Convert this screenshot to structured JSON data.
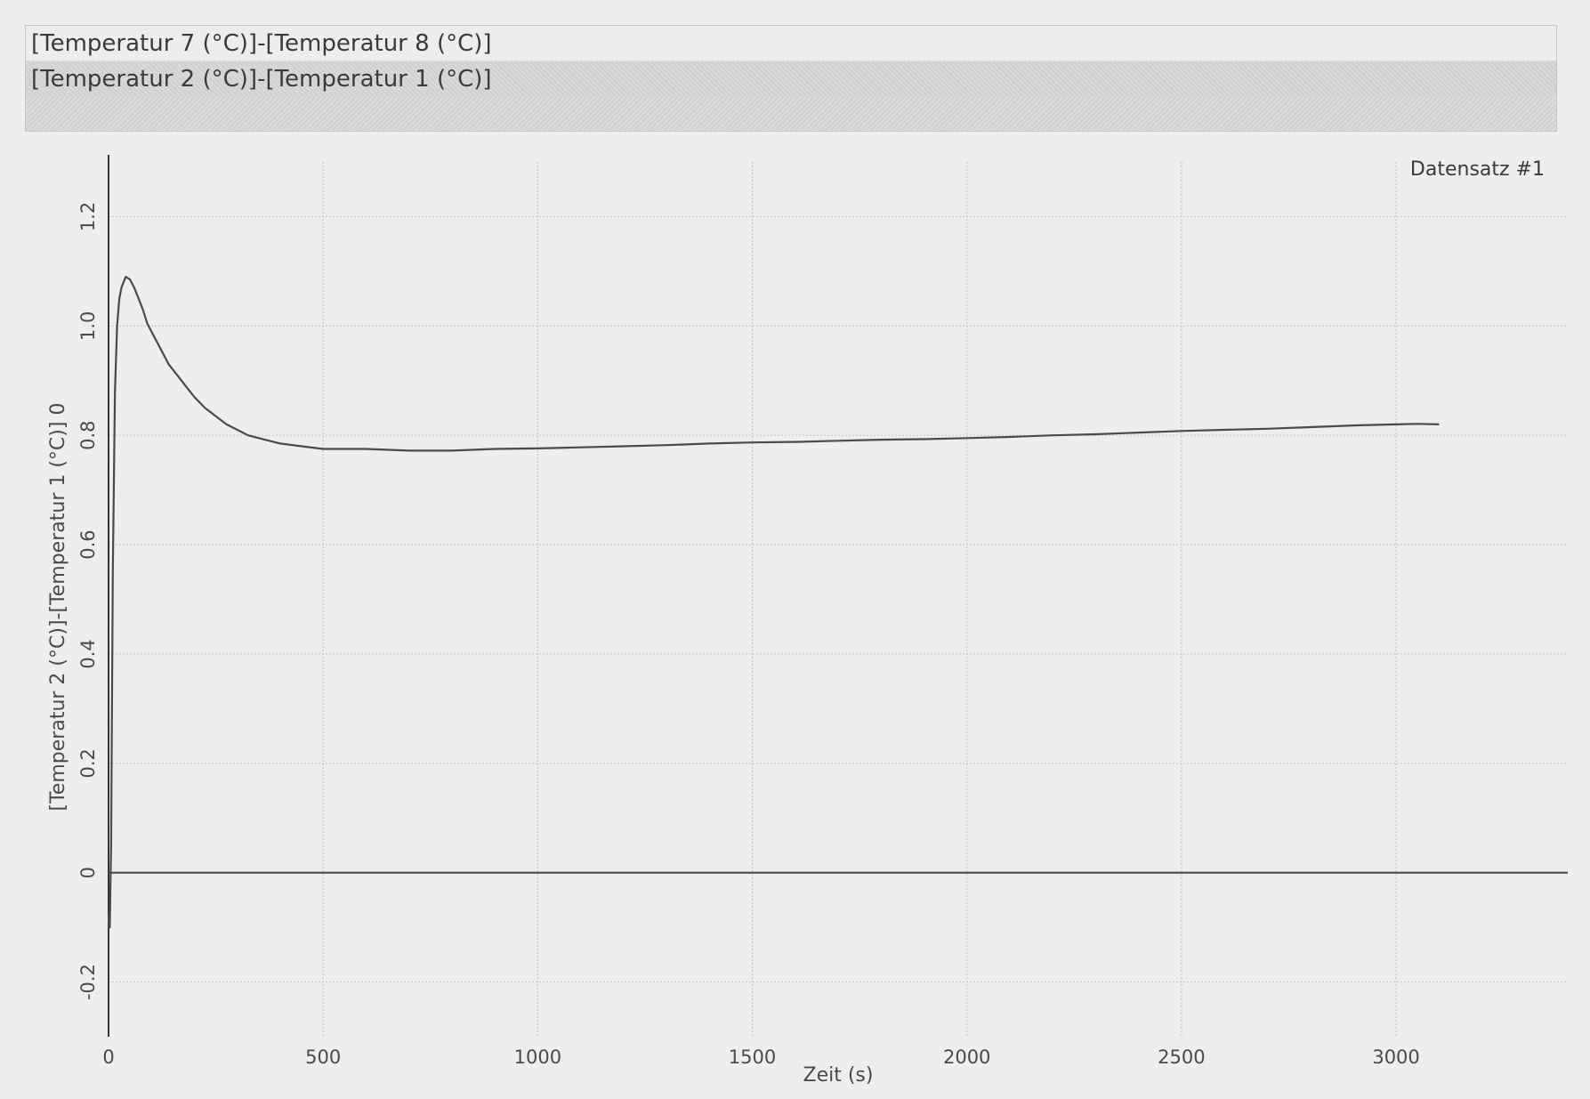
{
  "series_list": {
    "items": [
      {
        "label": "[Temperatur 7 (°C)]-[Temperatur 8 (°C)]",
        "selected": false
      },
      {
        "label": "[Temperatur 2 (°C)]-[Temperatur 1 (°C)]",
        "selected": true
      }
    ]
  },
  "chart_data": {
    "type": "line",
    "dataset_label": "Datensatz #1",
    "xlabel": "Zeit (s)",
    "ylabel": "[Temperatur 2 (°C)]-[Temperatur 1 (°C)] 0",
    "xlim": [
      0,
      3400
    ],
    "ylim": [
      -0.3,
      1.3
    ],
    "xticks": [
      "0",
      "500",
      "1000",
      "1500",
      "2000",
      "2500",
      "3000"
    ],
    "yticks": [
      "-0.2",
      "0",
      "0.2",
      "0.4",
      "0.6",
      "0.8",
      "1.0",
      "1.2"
    ],
    "grid": true,
    "colors": {
      "line": "#4a4a4a",
      "grid": "#c8c8c8",
      "axis": "#333333"
    },
    "series": [
      {
        "x": [
          0,
          3,
          6,
          10,
          15,
          20,
          25,
          30,
          40,
          50,
          60,
          70,
          80,
          90,
          100,
          120,
          140,
          160,
          180,
          200,
          225,
          250,
          275,
          300,
          325,
          350,
          400,
          450,
          500,
          600,
          700,
          800,
          900,
          1000,
          1100,
          1200,
          1300,
          1400,
          1500,
          1600,
          1700,
          1800,
          1900,
          2000,
          2100,
          2200,
          2300,
          2400,
          2500,
          2600,
          2700,
          2800,
          2900,
          3000,
          3050,
          3100
        ],
        "y": [
          -0.08,
          -0.1,
          0.05,
          0.55,
          0.88,
          1.0,
          1.05,
          1.07,
          1.09,
          1.085,
          1.07,
          1.05,
          1.03,
          1.005,
          0.99,
          0.96,
          0.93,
          0.91,
          0.89,
          0.87,
          0.85,
          0.835,
          0.82,
          0.81,
          0.8,
          0.795,
          0.785,
          0.78,
          0.775,
          0.775,
          0.772,
          0.772,
          0.775,
          0.776,
          0.778,
          0.78,
          0.782,
          0.785,
          0.787,
          0.788,
          0.79,
          0.792,
          0.793,
          0.795,
          0.797,
          0.8,
          0.802,
          0.805,
          0.808,
          0.81,
          0.812,
          0.815,
          0.818,
          0.82,
          0.821,
          0.82
        ]
      },
      {
        "name": "0",
        "x": [
          0,
          3400
        ],
        "y": [
          0,
          0
        ]
      }
    ]
  }
}
